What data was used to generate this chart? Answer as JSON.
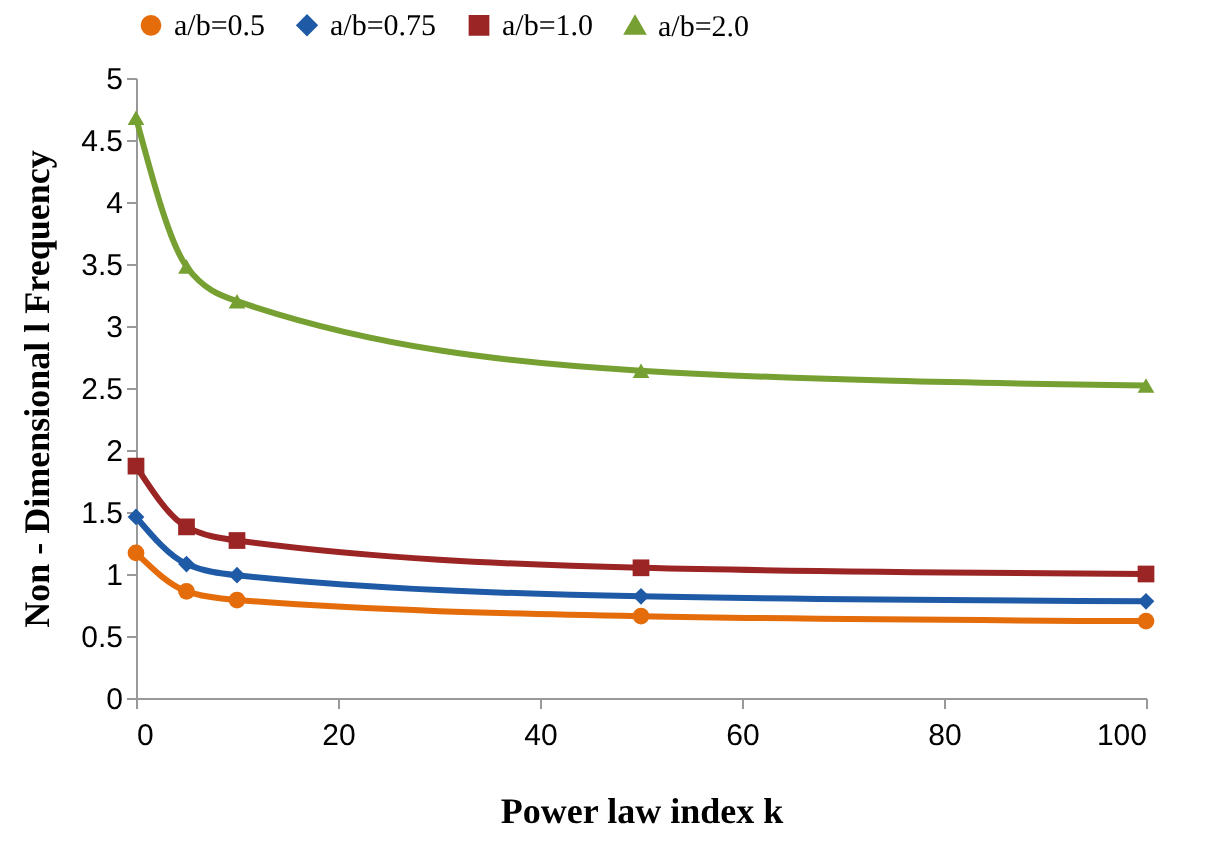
{
  "chart_data": {
    "type": "line",
    "xlabel": "Power law index k",
    "ylabel": "Non - Dimensional l Frequency",
    "x": [
      0,
      5,
      10,
      50,
      100
    ],
    "series": [
      {
        "name": "a/b=0.5",
        "color": "#e46c0a",
        "marker": "circle",
        "values": [
          1.17,
          0.86,
          0.79,
          0.66,
          0.62
        ]
      },
      {
        "name": "a/b=0.75",
        "color": "#1f5aa6",
        "marker": "diamond",
        "values": [
          1.46,
          1.08,
          0.99,
          0.82,
          0.78
        ]
      },
      {
        "name": "a/b=1.0",
        "color": "#9b2424",
        "marker": "square",
        "values": [
          1.87,
          1.38,
          1.27,
          1.05,
          1.0
        ]
      },
      {
        "name": "a/b=2.0",
        "color": "#77a033",
        "marker": "triangle",
        "values": [
          4.68,
          3.48,
          3.2,
          2.64,
          2.52
        ]
      }
    ],
    "xlim": [
      0,
      100
    ],
    "xticks": [
      0,
      20,
      40,
      60,
      80,
      100
    ],
    "ylim": [
      0,
      5
    ],
    "yticks": [
      0,
      0.5,
      1,
      1.5,
      2,
      2.5,
      3,
      3.5,
      4,
      4.5,
      5
    ],
    "grid": false,
    "legend": "top",
    "line_style": "solid"
  }
}
